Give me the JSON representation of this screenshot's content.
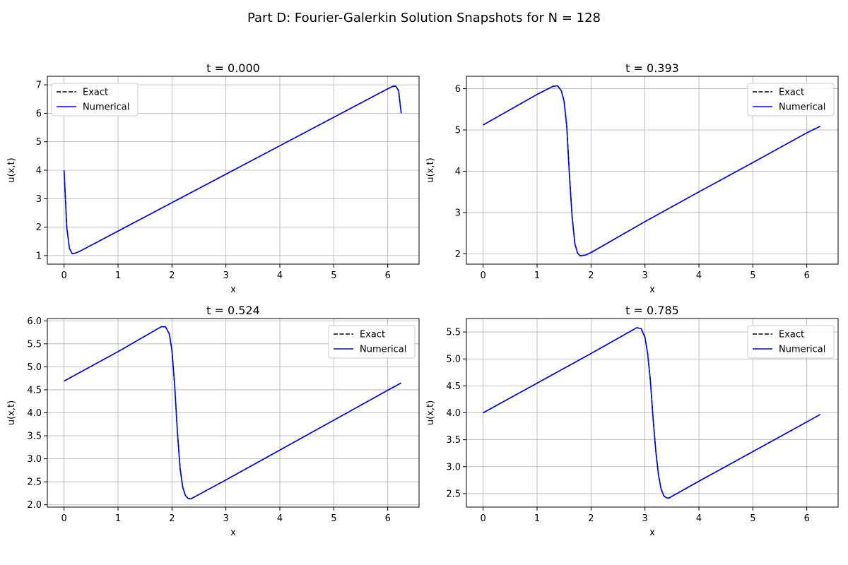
{
  "figure": {
    "title": "Part D: Fourier-Galerkin Solution Snapshots for N = 128"
  },
  "chart_data": [
    {
      "type": "line",
      "title": "t = 0.000",
      "xlabel": "x",
      "ylabel": "u(x,t)",
      "xlim": [
        -0.31,
        6.58
      ],
      "ylim": [
        0.7,
        7.3
      ],
      "xticks": [
        0,
        1,
        2,
        3,
        4,
        5,
        6
      ],
      "yticks": [
        1,
        2,
        3,
        4,
        5,
        6,
        7
      ],
      "grid": true,
      "legend_position": "top-left",
      "series": [
        {
          "name": "Exact",
          "color": "#000000",
          "style": "dashed",
          "x": [
            0.0,
            0.05,
            0.1,
            0.15,
            0.2,
            0.3,
            1.0,
            2.0,
            3.0,
            4.0,
            5.0,
            6.0,
            6.1,
            6.15,
            6.2,
            6.25
          ],
          "y": [
            4.0,
            2.0,
            1.25,
            1.07,
            1.08,
            1.16,
            1.86,
            2.86,
            3.86,
            4.86,
            5.86,
            6.86,
            6.95,
            6.95,
            6.8,
            6.0
          ]
        },
        {
          "name": "Numerical",
          "color": "#0000ff",
          "style": "solid",
          "x": [
            0.0,
            0.05,
            0.1,
            0.15,
            0.2,
            0.3,
            1.0,
            2.0,
            3.0,
            4.0,
            5.0,
            6.0,
            6.1,
            6.15,
            6.2,
            6.25
          ],
          "y": [
            4.0,
            2.0,
            1.25,
            1.07,
            1.08,
            1.16,
            1.86,
            2.86,
            3.86,
            4.86,
            5.86,
            6.86,
            6.95,
            6.95,
            6.8,
            6.0
          ]
        }
      ]
    },
    {
      "type": "line",
      "title": "t = 0.393",
      "xlabel": "x",
      "ylabel": "u(x,t)",
      "xlim": [
        -0.31,
        6.58
      ],
      "ylim": [
        1.75,
        6.3
      ],
      "xticks": [
        0,
        1,
        2,
        3,
        4,
        5,
        6
      ],
      "yticks": [
        2,
        3,
        4,
        5,
        6
      ],
      "grid": true,
      "legend_position": "top-right",
      "series": [
        {
          "name": "Exact",
          "color": "#000000",
          "style": "dashed",
          "x": [
            0.0,
            1.0,
            1.3,
            1.38,
            1.45,
            1.5,
            1.55,
            1.6,
            1.65,
            1.7,
            1.75,
            1.8,
            1.9,
            2.0,
            3.0,
            4.0,
            5.0,
            6.0,
            6.25
          ],
          "y": [
            5.12,
            5.86,
            6.06,
            6.07,
            5.95,
            5.7,
            5.1,
            3.9,
            2.9,
            2.25,
            2.02,
            1.95,
            1.97,
            2.03,
            2.78,
            3.5,
            4.21,
            4.93,
            5.09
          ]
        },
        {
          "name": "Numerical",
          "color": "#0000ff",
          "style": "solid",
          "x": [
            0.0,
            1.0,
            1.3,
            1.38,
            1.45,
            1.5,
            1.55,
            1.6,
            1.65,
            1.7,
            1.75,
            1.8,
            1.9,
            2.0,
            3.0,
            4.0,
            5.0,
            6.0,
            6.25
          ],
          "y": [
            5.12,
            5.86,
            6.06,
            6.07,
            5.95,
            5.7,
            5.1,
            3.9,
            2.9,
            2.25,
            2.02,
            1.95,
            1.97,
            2.03,
            2.78,
            3.5,
            4.21,
            4.93,
            5.09
          ]
        }
      ]
    },
    {
      "type": "line",
      "title": "t = 0.524",
      "xlabel": "x",
      "ylabel": "u(x,t)",
      "xlim": [
        -0.31,
        6.58
      ],
      "ylim": [
        1.95,
        6.05
      ],
      "xticks": [
        0,
        1,
        2,
        3,
        4,
        5,
        6
      ],
      "yticks": [
        2.0,
        2.5,
        3.0,
        3.5,
        4.0,
        4.5,
        5.0,
        5.5,
        6.0
      ],
      "grid": true,
      "legend_position": "top-right",
      "series": [
        {
          "name": "Exact",
          "color": "#000000",
          "style": "dashed",
          "x": [
            0.0,
            1.0,
            1.8,
            1.88,
            1.95,
            2.0,
            2.05,
            2.1,
            2.15,
            2.2,
            2.25,
            2.3,
            2.35,
            2.4,
            3.0,
            4.0,
            5.0,
            6.0,
            6.25
          ],
          "y": [
            4.69,
            5.33,
            5.87,
            5.87,
            5.72,
            5.35,
            4.6,
            3.6,
            2.8,
            2.38,
            2.2,
            2.14,
            2.13,
            2.16,
            2.54,
            3.19,
            3.84,
            4.49,
            4.65
          ]
        },
        {
          "name": "Numerical",
          "color": "#0000ff",
          "style": "solid",
          "x": [
            0.0,
            1.0,
            1.8,
            1.88,
            1.95,
            2.0,
            2.05,
            2.1,
            2.15,
            2.2,
            2.25,
            2.3,
            2.35,
            2.4,
            3.0,
            4.0,
            5.0,
            6.0,
            6.25
          ],
          "y": [
            4.69,
            5.33,
            5.87,
            5.87,
            5.72,
            5.35,
            4.6,
            3.6,
            2.8,
            2.38,
            2.2,
            2.14,
            2.13,
            2.16,
            2.54,
            3.19,
            3.84,
            4.49,
            4.65
          ]
        }
      ]
    },
    {
      "type": "line",
      "title": "t = 0.785",
      "xlabel": "x",
      "ylabel": "u(x,t)",
      "xlim": [
        -0.31,
        6.58
      ],
      "ylim": [
        2.25,
        5.75
      ],
      "xticks": [
        0,
        1,
        2,
        3,
        4,
        5,
        6
      ],
      "yticks": [
        2.5,
        3.0,
        3.5,
        4.0,
        4.5,
        5.0,
        5.5
      ],
      "grid": true,
      "legend_position": "top-right",
      "series": [
        {
          "name": "Exact",
          "color": "#000000",
          "style": "dashed",
          "x": [
            0.0,
            1.0,
            2.0,
            2.85,
            2.93,
            3.0,
            3.05,
            3.1,
            3.15,
            3.2,
            3.25,
            3.3,
            3.35,
            3.4,
            3.45,
            3.5,
            4.0,
            5.0,
            6.0,
            6.25
          ],
          "y": [
            4.0,
            4.55,
            5.1,
            5.58,
            5.56,
            5.4,
            5.1,
            4.6,
            3.9,
            3.3,
            2.85,
            2.58,
            2.46,
            2.42,
            2.42,
            2.45,
            2.73,
            3.28,
            3.83,
            3.97
          ]
        },
        {
          "name": "Numerical",
          "color": "#0000ff",
          "style": "solid",
          "x": [
            0.0,
            1.0,
            2.0,
            2.85,
            2.93,
            3.0,
            3.05,
            3.1,
            3.15,
            3.2,
            3.25,
            3.3,
            3.35,
            3.4,
            3.45,
            3.5,
            4.0,
            5.0,
            6.0,
            6.25
          ],
          "y": [
            4.0,
            4.55,
            5.1,
            5.58,
            5.56,
            5.4,
            5.1,
            4.6,
            3.9,
            3.3,
            2.85,
            2.58,
            2.46,
            2.42,
            2.42,
            2.45,
            2.73,
            3.28,
            3.83,
            3.97
          ]
        }
      ]
    }
  ]
}
